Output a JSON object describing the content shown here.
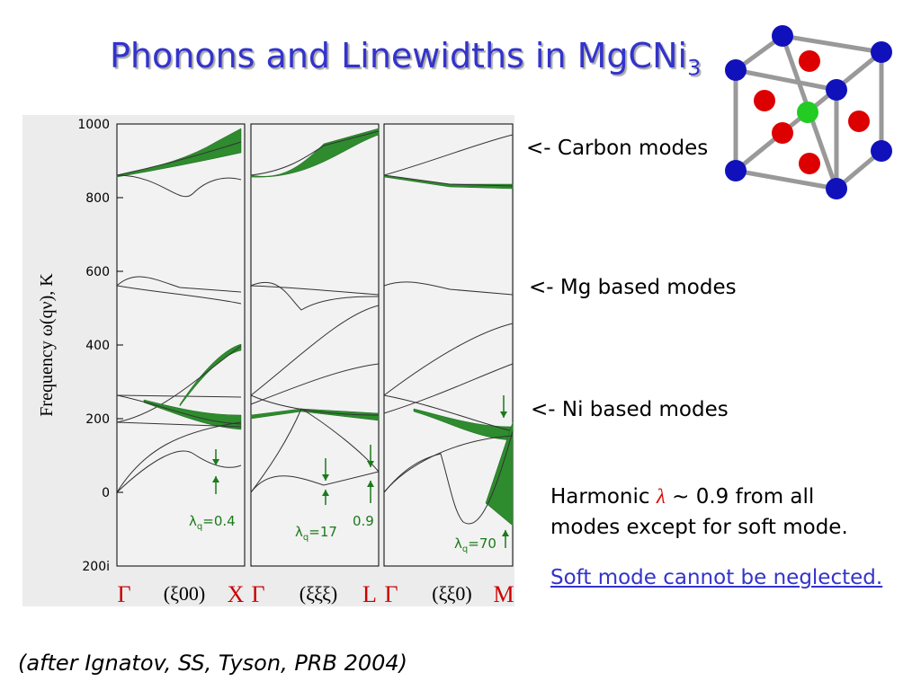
{
  "title": {
    "text": "Phonons and Linewidths in MgCNi",
    "subscript": "3"
  },
  "figure": {
    "y_axis_label": "Frequency ω(qν), K",
    "y_ticks": [
      "1000",
      "800",
      "600",
      "400",
      "200",
      "0",
      "200i"
    ],
    "panels": [
      {
        "start": "Γ",
        "direction": "(ξ00)",
        "end": "X",
        "lambda": "λ",
        "lambda_sub": "q",
        "lambda_value": "=0.4"
      },
      {
        "start": "Γ",
        "direction": "(ξξξ)",
        "end": "L",
        "lambda": "λ",
        "lambda_sub": "q",
        "lambda_value": "=17",
        "extra_label": "0.9"
      },
      {
        "start": "Γ",
        "direction": "(ξξ0)",
        "end": "M",
        "lambda": "λ",
        "lambda_sub": "q",
        "lambda_value": "=70"
      }
    ]
  },
  "annotations": [
    "<- Carbon modes",
    "<- Mg based modes",
    "<- Ni based modes"
  ],
  "notes": {
    "line1_prefix": "Harmonic",
    "lambda": "λ",
    "line1_suffix": "~ 0.9 from all",
    "line2": "modes except for soft mode.",
    "link": "Soft mode cannot be neglected."
  },
  "citation": "(after Ignatov, SS, Tyson, PRB 2004)"
}
